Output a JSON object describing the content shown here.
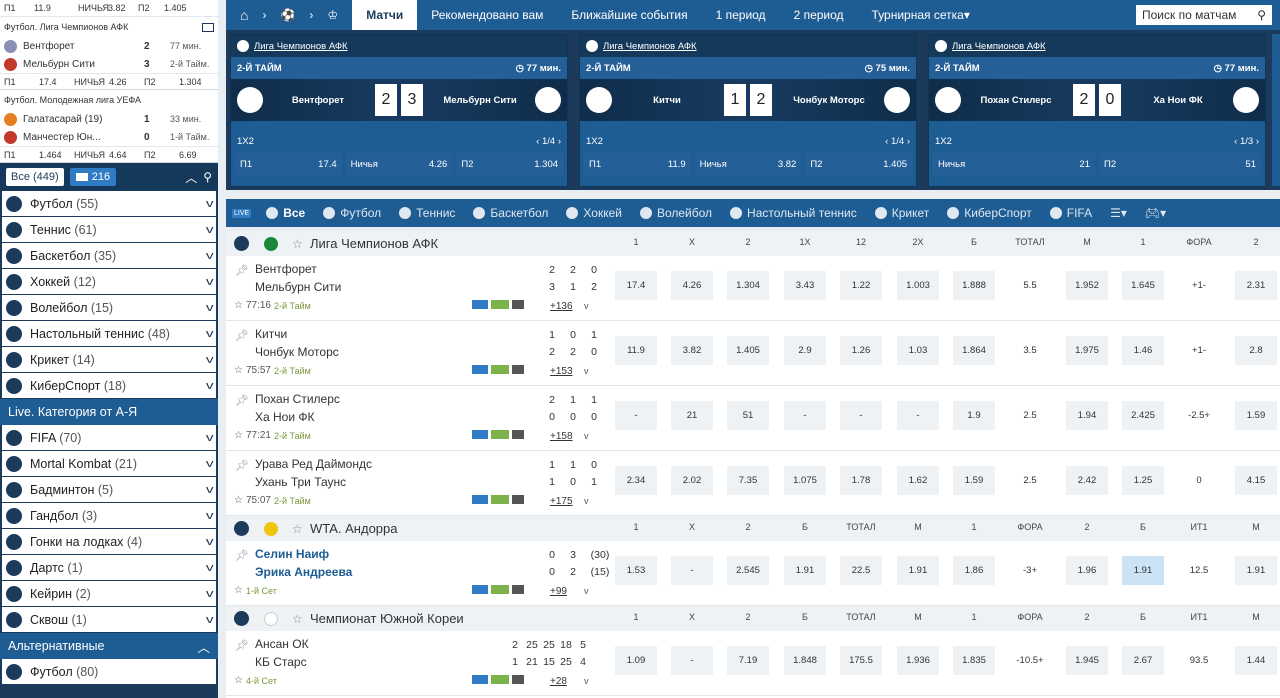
{
  "sidebar": {
    "top_odds": {
      "p1": "П1",
      "p1_val": "11.9",
      "draw": "НИЧЬЯ",
      "draw_val": "3.82",
      "p2": "П2",
      "p2_val": "1.405"
    },
    "mini_matches": [
      {
        "league": "Футбол. Лига Чемпионов АФК",
        "team1": "Вентфорет",
        "score1": "2",
        "time1": "77 мин.",
        "team2": "Мельбурн Сити",
        "score2": "3",
        "time2": "2-й Тайм.",
        "odds": {
          "p1": "П1",
          "p1_val": "17.4",
          "draw": "НИЧЬЯ",
          "draw_val": "4.26",
          "p2": "П2",
          "p2_val": "1.304"
        },
        "c1": "#8a8fb3",
        "c2": "#c0392b"
      },
      {
        "league": "Футбол. Молодежная лига УЕФА",
        "team1": "Галатасарай (19)",
        "score1": "1",
        "time1": "33 мин.",
        "team2": "Манчестер Юн...",
        "score2": "0",
        "time2": "1-й Тайм.",
        "odds": {
          "p1": "П1",
          "p1_val": "1.464",
          "draw": "НИЧЬЯ",
          "draw_val": "4.64",
          "p2": "П2",
          "p2_val": "6.69"
        },
        "c1": "#e67e22",
        "c2": "#c0392b"
      }
    ],
    "filter": {
      "all": "Все (449)",
      "live_count": "216"
    },
    "sports": [
      {
        "name": "Футбол",
        "count": "(55)"
      },
      {
        "name": "Теннис",
        "count": "(61)"
      },
      {
        "name": "Баскетбол",
        "count": "(35)"
      },
      {
        "name": "Хоккей",
        "count": "(12)"
      },
      {
        "name": "Волейбол",
        "count": "(15)"
      },
      {
        "name": "Настольный теннис",
        "count": "(48)"
      },
      {
        "name": "Крикет",
        "count": "(14)"
      },
      {
        "name": "КиберСпорт",
        "count": "(18)"
      }
    ],
    "category_header": "Live. Категория от А-Я",
    "categories": [
      {
        "name": "FIFA",
        "count": "(70)"
      },
      {
        "name": "Mortal Kombat",
        "count": "(21)"
      },
      {
        "name": "Бадминтон",
        "count": "(5)"
      },
      {
        "name": "Гандбол",
        "count": "(3)"
      },
      {
        "name": "Гонки на лодках",
        "count": "(4)"
      },
      {
        "name": "Дартс",
        "count": "(1)"
      },
      {
        "name": "Кейрин",
        "count": "(2)"
      },
      {
        "name": "Сквош",
        "count": "(1)"
      }
    ],
    "alt_header": "Альтернативные",
    "alt_first": {
      "name": "Футбол",
      "count": "(80)"
    }
  },
  "topbar": {
    "tabs": [
      "Матчи",
      "Рекомендовано вам",
      "Ближайшие события",
      "1 период",
      "2 период",
      "Турнирная сетка"
    ],
    "search_label": "Поиск по матчам"
  },
  "cards": [
    {
      "league": "Лига Чемпионов АФК",
      "phase": "2-Й ТАЙМ",
      "time": "77 мин.",
      "team1": "Вентфорет",
      "team2": "Мельбурн Сити",
      "s1": "2",
      "s2": "3",
      "market": "1X2",
      "page": "1/4",
      "odds": [
        {
          "l": "П1",
          "v": "17.4"
        },
        {
          "l": "Ничья",
          "v": "4.26"
        },
        {
          "l": "П2",
          "v": "1.304"
        }
      ]
    },
    {
      "league": "Лига Чемпионов АФК",
      "phase": "2-Й ТАЙМ",
      "time": "75 мин.",
      "team1": "Китчи",
      "team2": "Чонбук Моторс",
      "s1": "1",
      "s2": "2",
      "market": "1X2",
      "page": "1/4",
      "odds": [
        {
          "l": "П1",
          "v": "11.9"
        },
        {
          "l": "Ничья",
          "v": "3.82"
        },
        {
          "l": "П2",
          "v": "1.405"
        }
      ]
    },
    {
      "league": "Лига Чемпионов АФК",
      "phase": "2-Й ТАЙМ",
      "time": "77 мин.",
      "team1": "Похан Стилерс",
      "team2": "Ха Нои ФК",
      "s1": "2",
      "s2": "0",
      "market": "1X2",
      "page": "1/3",
      "odds": [
        {
          "l": "Ничья",
          "v": "21"
        },
        {
          "l": "П2",
          "v": "51"
        }
      ]
    }
  ],
  "sports_bar": [
    "Все",
    "Футбол",
    "Теннис",
    "Баскетбол",
    "Хоккей",
    "Волейбол",
    "Настольный теннис",
    "Крикет",
    "КиберСпорт",
    "FIFA"
  ],
  "leagues": [
    {
      "name": "Лига Чемпионов АФК",
      "cols": [
        "1",
        "X",
        "2",
        "1X",
        "12",
        "2X",
        "Б",
        "ТОТАЛ",
        "М",
        "1",
        "ФОРА",
        "2"
      ],
      "events": [
        {
          "t1": "Вентфорет",
          "t2": "Мельбурн Сити",
          "s1": [
            "2",
            "2",
            "0"
          ],
          "s2": [
            "3",
            "1",
            "2"
          ],
          "time": "77:16",
          "phase": "2-й Тайм",
          "more": "+136",
          "odds": [
            "17.4",
            "4.26",
            "1.304",
            "3.43",
            "1.22",
            "1.003",
            "1.888",
            "5.5",
            "1.952",
            "1.645",
            "+1-",
            "2.31"
          ]
        },
        {
          "t1": "Китчи",
          "t2": "Чонбук Моторс",
          "s1": [
            "1",
            "0",
            "1"
          ],
          "s2": [
            "2",
            "2",
            "0"
          ],
          "time": "75:57",
          "phase": "2-й Тайм",
          "more": "+153",
          "odds": [
            "11.9",
            "3.82",
            "1.405",
            "2.9",
            "1.26",
            "1.03",
            "1.864",
            "3.5",
            "1.975",
            "1.46",
            "+1-",
            "2.8"
          ]
        },
        {
          "t1": "Похан Стилерс",
          "t2": "Ха Нои ФК",
          "s1": [
            "2",
            "1",
            "1"
          ],
          "s2": [
            "0",
            "0",
            "0"
          ],
          "time": "77:21",
          "phase": "2-й Тайм",
          "more": "+158",
          "odds": [
            "-",
            "21",
            "51",
            "-",
            "-",
            "-",
            "1.9",
            "2.5",
            "1.94",
            "2.425",
            "-2.5+",
            "1.59"
          ]
        },
        {
          "t1": "Урава Ред Даймондс",
          "t2": "Ухань Три Таунс",
          "s1": [
            "1",
            "1",
            "0"
          ],
          "s2": [
            "1",
            "0",
            "1"
          ],
          "time": "75:07",
          "phase": "2-й Тайм",
          "more": "+175",
          "odds": [
            "2.34",
            "2.02",
            "7.35",
            "1.075",
            "1.78",
            "1.62",
            "1.59",
            "2.5",
            "2.42",
            "1.25",
            "0",
            "4.15"
          ]
        }
      ]
    },
    {
      "name": "WTA. Андорра",
      "cols": [
        "1",
        "X",
        "2",
        "Б",
        "ТОТАЛ",
        "М",
        "1",
        "ФОРА",
        "2",
        "Б",
        "ИТ1",
        "М"
      ],
      "events": [
        {
          "t1": "Селин Наиф",
          "t2": "Эрика Андреева",
          "s1": [
            "0",
            "3",
            "(30)"
          ],
          "s2": [
            "0",
            "2",
            "(15)"
          ],
          "time": "",
          "phase": "1-й Сет",
          "more": "+99",
          "odds": [
            "1.53",
            "-",
            "2.545",
            "1.91",
            "22.5",
            "1.91",
            "1.86",
            "-3+",
            "1.96",
            "1.91",
            "12.5",
            "1.91"
          ]
        }
      ]
    },
    {
      "name": "Чемпионат Южной Кореи",
      "cols": [
        "1",
        "X",
        "2",
        "Б",
        "ТОТАЛ",
        "М",
        "1",
        "ФОРА",
        "2",
        "Б",
        "ИТ1",
        "М"
      ],
      "events": [
        {
          "t1": "Ансан ОК",
          "t2": "КБ Старс",
          "s1": [
            "2",
            "25",
            "25",
            "18",
            "5"
          ],
          "s2": [
            "1",
            "21",
            "15",
            "25",
            "4"
          ],
          "time": "",
          "phase": "4-й Сет",
          "more": "+28",
          "odds": [
            "1.09",
            "-",
            "7.19",
            "1.848",
            "175.5",
            "1.936",
            "1.835",
            "-10.5+",
            "1.945",
            "2.67",
            "93.5",
            "1.44"
          ]
        }
      ]
    }
  ],
  "colors": {
    "brand": "#1e5c94",
    "dark": "#1b3a5c",
    "highlight": "#cce3f6"
  }
}
